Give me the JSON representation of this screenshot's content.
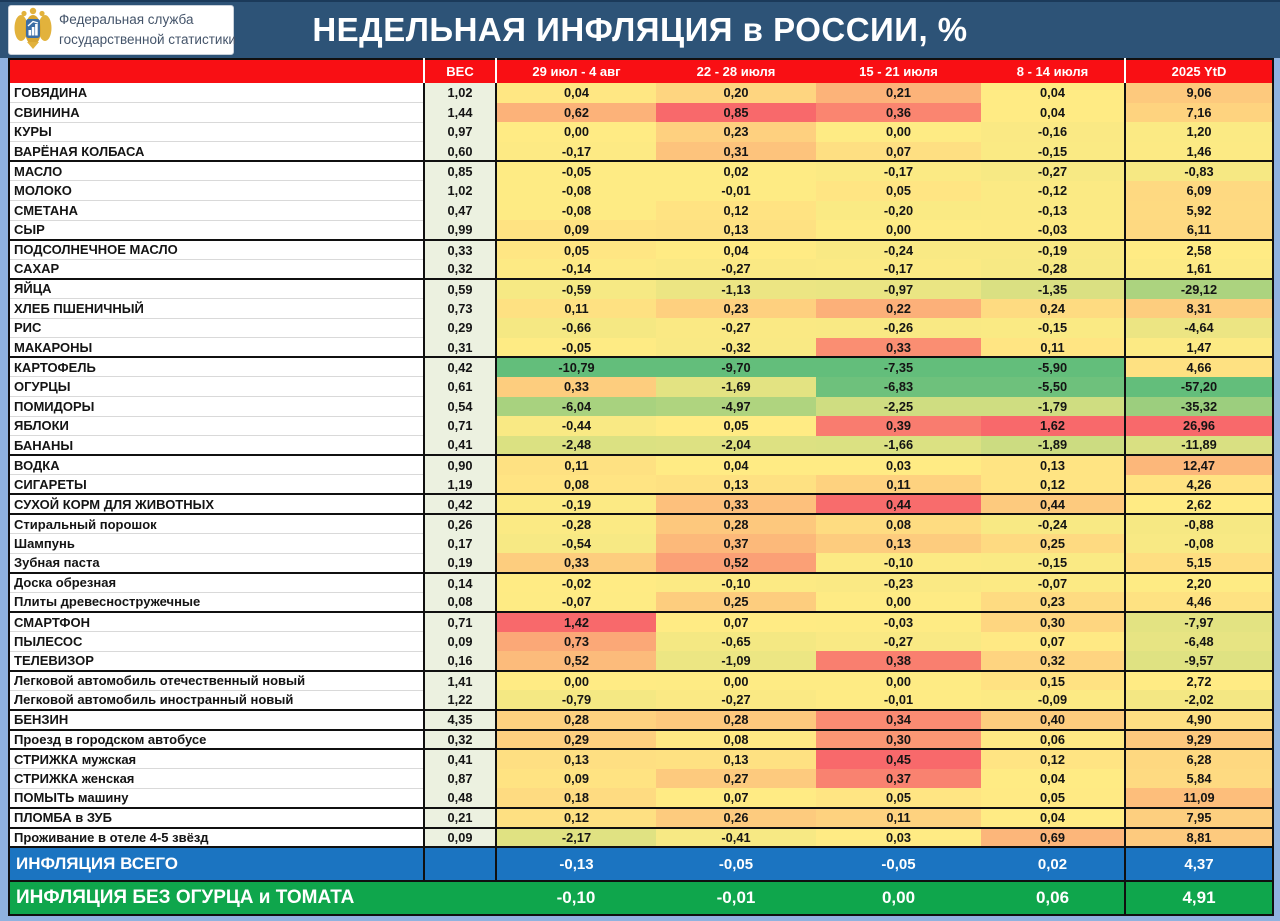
{
  "title_bar": {
    "title": "НЕДЕЛЬНАЯ ИНФЛЯЦИЯ в РОССИИ, %",
    "logo": {
      "line1": "Федеральная служба",
      "line2": "государственной статистики"
    }
  },
  "colors": {
    "titlebar_blue": "#2D5377",
    "frame_blue": "#8FB2DF",
    "header_red": "#F90F14",
    "weight_column_bg": "#ECF1E0",
    "summary_total_blue": "#1B74C1",
    "summary_core_green": "#0FA64C",
    "heat_min_green": "#63BE7B",
    "heat_mid_yellow": "#FFEB84",
    "heat_max_red": "#F8696B"
  },
  "chart_data": {
    "type": "heatmap",
    "title": "НЕДЕЛЬНАЯ ИНФЛЯЦИЯ в РОССИИ, %",
    "legend_position": "none",
    "colorscale_note": "per-column 3-color scale: min green #63BE7B, median yellow #FFEB84, max red #F8696B",
    "columns": [
      "ВЕС",
      "29 июл - 4 авг",
      "22 - 28 июля",
      "15 - 21 июля",
      "8 - 14 июля",
      "2025 YtD"
    ],
    "rows": [
      {
        "name": "ГОВЯДИНА",
        "weight": "1,02",
        "values": [
          "0,04",
          "0,20",
          "0,21",
          "0,04"
        ],
        "ytd": "9,06",
        "group_end": false
      },
      {
        "name": "СВИНИНА",
        "weight": "1,44",
        "values": [
          "0,62",
          "0,85",
          "0,36",
          "0,04"
        ],
        "ytd": "7,16",
        "group_end": false
      },
      {
        "name": "КУРЫ",
        "weight": "0,97",
        "values": [
          "0,00",
          "0,23",
          "0,00",
          "-0,16"
        ],
        "ytd": "1,20",
        "group_end": false
      },
      {
        "name": "ВАРЁНАЯ КОЛБАСА",
        "weight": "0,60",
        "values": [
          "-0,17",
          "0,31",
          "0,07",
          "-0,15"
        ],
        "ytd": "1,46",
        "group_end": true
      },
      {
        "name": "МАСЛО",
        "weight": "0,85",
        "values": [
          "-0,05",
          "0,02",
          "-0,17",
          "-0,27"
        ],
        "ytd": "-0,83",
        "group_end": false
      },
      {
        "name": "МОЛОКО",
        "weight": "1,02",
        "values": [
          "-0,08",
          "-0,01",
          "0,05",
          "-0,12"
        ],
        "ytd": "6,09",
        "group_end": false
      },
      {
        "name": "СМЕТАНА",
        "weight": "0,47",
        "values": [
          "-0,08",
          "0,12",
          "-0,20",
          "-0,13"
        ],
        "ytd": "5,92",
        "group_end": false
      },
      {
        "name": "СЫР",
        "weight": "0,99",
        "values": [
          "0,09",
          "0,13",
          "0,00",
          "-0,03"
        ],
        "ytd": "6,11",
        "group_end": true
      },
      {
        "name": "ПОДСОЛНЕЧНОЕ МАСЛО",
        "weight": "0,33",
        "values": [
          "0,05",
          "0,04",
          "-0,24",
          "-0,19"
        ],
        "ytd": "2,58",
        "group_end": false
      },
      {
        "name": "САХАР",
        "weight": "0,32",
        "values": [
          "-0,14",
          "-0,27",
          "-0,17",
          "-0,28"
        ],
        "ytd": "1,61",
        "group_end": true
      },
      {
        "name": "ЯЙЦА",
        "weight": "0,59",
        "values": [
          "-0,59",
          "-1,13",
          "-0,97",
          "-1,35"
        ],
        "ytd": "-29,12",
        "group_end": false
      },
      {
        "name": "ХЛЕБ ПШЕНИЧНЫЙ",
        "weight": "0,73",
        "values": [
          "0,11",
          "0,23",
          "0,22",
          "0,24"
        ],
        "ytd": "8,31",
        "group_end": false
      },
      {
        "name": "РИС",
        "weight": "0,29",
        "values": [
          "-0,66",
          "-0,27",
          "-0,26",
          "-0,15"
        ],
        "ytd": "-4,64",
        "group_end": false
      },
      {
        "name": "МАКАРОНЫ",
        "weight": "0,31",
        "values": [
          "-0,05",
          "-0,32",
          "0,33",
          "0,11"
        ],
        "ytd": "1,47",
        "group_end": true
      },
      {
        "name": "КАРТОФЕЛЬ",
        "weight": "0,42",
        "values": [
          "-10,79",
          "-9,70",
          "-7,35",
          "-5,90"
        ],
        "ytd": "4,66",
        "group_end": false
      },
      {
        "name": "ОГУРЦЫ",
        "weight": "0,61",
        "values": [
          "0,33",
          "-1,69",
          "-6,83",
          "-5,50"
        ],
        "ytd": "-57,20",
        "group_end": false
      },
      {
        "name": "ПОМИДОРЫ",
        "weight": "0,54",
        "values": [
          "-6,04",
          "-4,97",
          "-2,25",
          "-1,79"
        ],
        "ytd": "-35,32",
        "group_end": false
      },
      {
        "name": "ЯБЛОКИ",
        "weight": "0,71",
        "values": [
          "-0,44",
          "0,05",
          "0,39",
          "1,62"
        ],
        "ytd": "26,96",
        "group_end": false
      },
      {
        "name": "БАНАНЫ",
        "weight": "0,41",
        "values": [
          "-2,48",
          "-2,04",
          "-1,66",
          "-1,89"
        ],
        "ytd": "-11,89",
        "group_end": true
      },
      {
        "name": "ВОДКА",
        "weight": "0,90",
        "values": [
          "0,11",
          "0,04",
          "0,03",
          "0,13"
        ],
        "ytd": "12,47",
        "group_end": false
      },
      {
        "name": "СИГАРЕТЫ",
        "weight": "1,19",
        "values": [
          "0,08",
          "0,13",
          "0,11",
          "0,12"
        ],
        "ytd": "4,26",
        "group_end": true
      },
      {
        "name": "СУХОЙ КОРМ ДЛЯ ЖИВОТНЫХ",
        "weight": "0,42",
        "values": [
          "-0,19",
          "0,33",
          "0,44",
          "0,44"
        ],
        "ytd": "2,62",
        "group_end": true
      },
      {
        "name": "Стиральный порошок",
        "weight": "0,26",
        "values": [
          "-0,28",
          "0,28",
          "0,08",
          "-0,24"
        ],
        "ytd": "-0,88",
        "group_end": false
      },
      {
        "name": "Шампунь",
        "weight": "0,17",
        "values": [
          "-0,54",
          "0,37",
          "0,13",
          "0,25"
        ],
        "ytd": "-0,08",
        "group_end": false
      },
      {
        "name": "Зубная паста",
        "weight": "0,19",
        "values": [
          "0,33",
          "0,52",
          "-0,10",
          "-0,15"
        ],
        "ytd": "5,15",
        "group_end": true
      },
      {
        "name": "Доска обрезная",
        "weight": "0,14",
        "values": [
          "-0,02",
          "-0,10",
          "-0,23",
          "-0,07"
        ],
        "ytd": "2,20",
        "group_end": false
      },
      {
        "name": "Плиты древесностружечные",
        "weight": "0,08",
        "values": [
          "-0,07",
          "0,25",
          "0,00",
          "0,23"
        ],
        "ytd": "4,46",
        "group_end": true
      },
      {
        "name": "СМАРТФОН",
        "weight": "0,71",
        "values": [
          "1,42",
          "0,07",
          "-0,03",
          "0,30"
        ],
        "ytd": "-7,97",
        "group_end": false
      },
      {
        "name": "ПЫЛЕСОС",
        "weight": "0,09",
        "values": [
          "0,73",
          "-0,65",
          "-0,27",
          "0,07"
        ],
        "ytd": "-6,48",
        "group_end": false
      },
      {
        "name": "ТЕЛЕВИЗОР",
        "weight": "0,16",
        "values": [
          "0,52",
          "-1,09",
          "0,38",
          "0,32"
        ],
        "ytd": "-9,57",
        "group_end": true
      },
      {
        "name": "Легковой автомобиль отечественный новый",
        "weight": "1,41",
        "values": [
          "0,00",
          "0,00",
          "0,00",
          "0,15"
        ],
        "ytd": "2,72",
        "group_end": false
      },
      {
        "name": "Легковой автомобиль иностранный новый",
        "weight": "1,22",
        "values": [
          "-0,79",
          "-0,27",
          "-0,01",
          "-0,09"
        ],
        "ytd": "-2,02",
        "group_end": true
      },
      {
        "name": "БЕНЗИН",
        "weight": "4,35",
        "values": [
          "0,28",
          "0,28",
          "0,34",
          "0,40"
        ],
        "ytd": "4,90",
        "group_end": true
      },
      {
        "name": "Проезд в городском автобусе",
        "weight": "0,32",
        "values": [
          "0,29",
          "0,08",
          "0,30",
          "0,06"
        ],
        "ytd": "9,29",
        "group_end": true
      },
      {
        "name": "СТРИЖКА мужская",
        "weight": "0,41",
        "values": [
          "0,13",
          "0,13",
          "0,45",
          "0,12"
        ],
        "ytd": "6,28",
        "group_end": false
      },
      {
        "name": "СТРИЖКА женская",
        "weight": "0,87",
        "values": [
          "0,09",
          "0,27",
          "0,37",
          "0,04"
        ],
        "ytd": "5,84",
        "group_end": false
      },
      {
        "name": "ПОМЫТЬ машину",
        "weight": "0,48",
        "values": [
          "0,18",
          "0,07",
          "0,05",
          "0,05"
        ],
        "ytd": "11,09",
        "group_end": true
      },
      {
        "name": "ПЛОМБА в ЗУБ",
        "weight": "0,21",
        "values": [
          "0,12",
          "0,26",
          "0,11",
          "0,04"
        ],
        "ytd": "7,95",
        "group_end": true
      },
      {
        "name": "Проживание в отеле 4-5 звёзд",
        "weight": "0,09",
        "values": [
          "-2,17",
          "-0,41",
          "0,03",
          "0,69"
        ],
        "ytd": "8,81",
        "group_end": true
      }
    ],
    "summary_rows": [
      {
        "label": "ИНФЛЯЦИЯ ВСЕГО",
        "values": [
          "-0,13",
          "-0,05",
          "-0,05",
          "0,02"
        ],
        "ytd": "4,37",
        "style": "total"
      },
      {
        "label": "ИНФЛЯЦИЯ БЕЗ ОГУРЦА и ТОМАТА",
        "values": [
          "-0,10",
          "-0,01",
          "0,00",
          "0,06"
        ],
        "ytd": "4,91",
        "style": "core"
      }
    ]
  }
}
